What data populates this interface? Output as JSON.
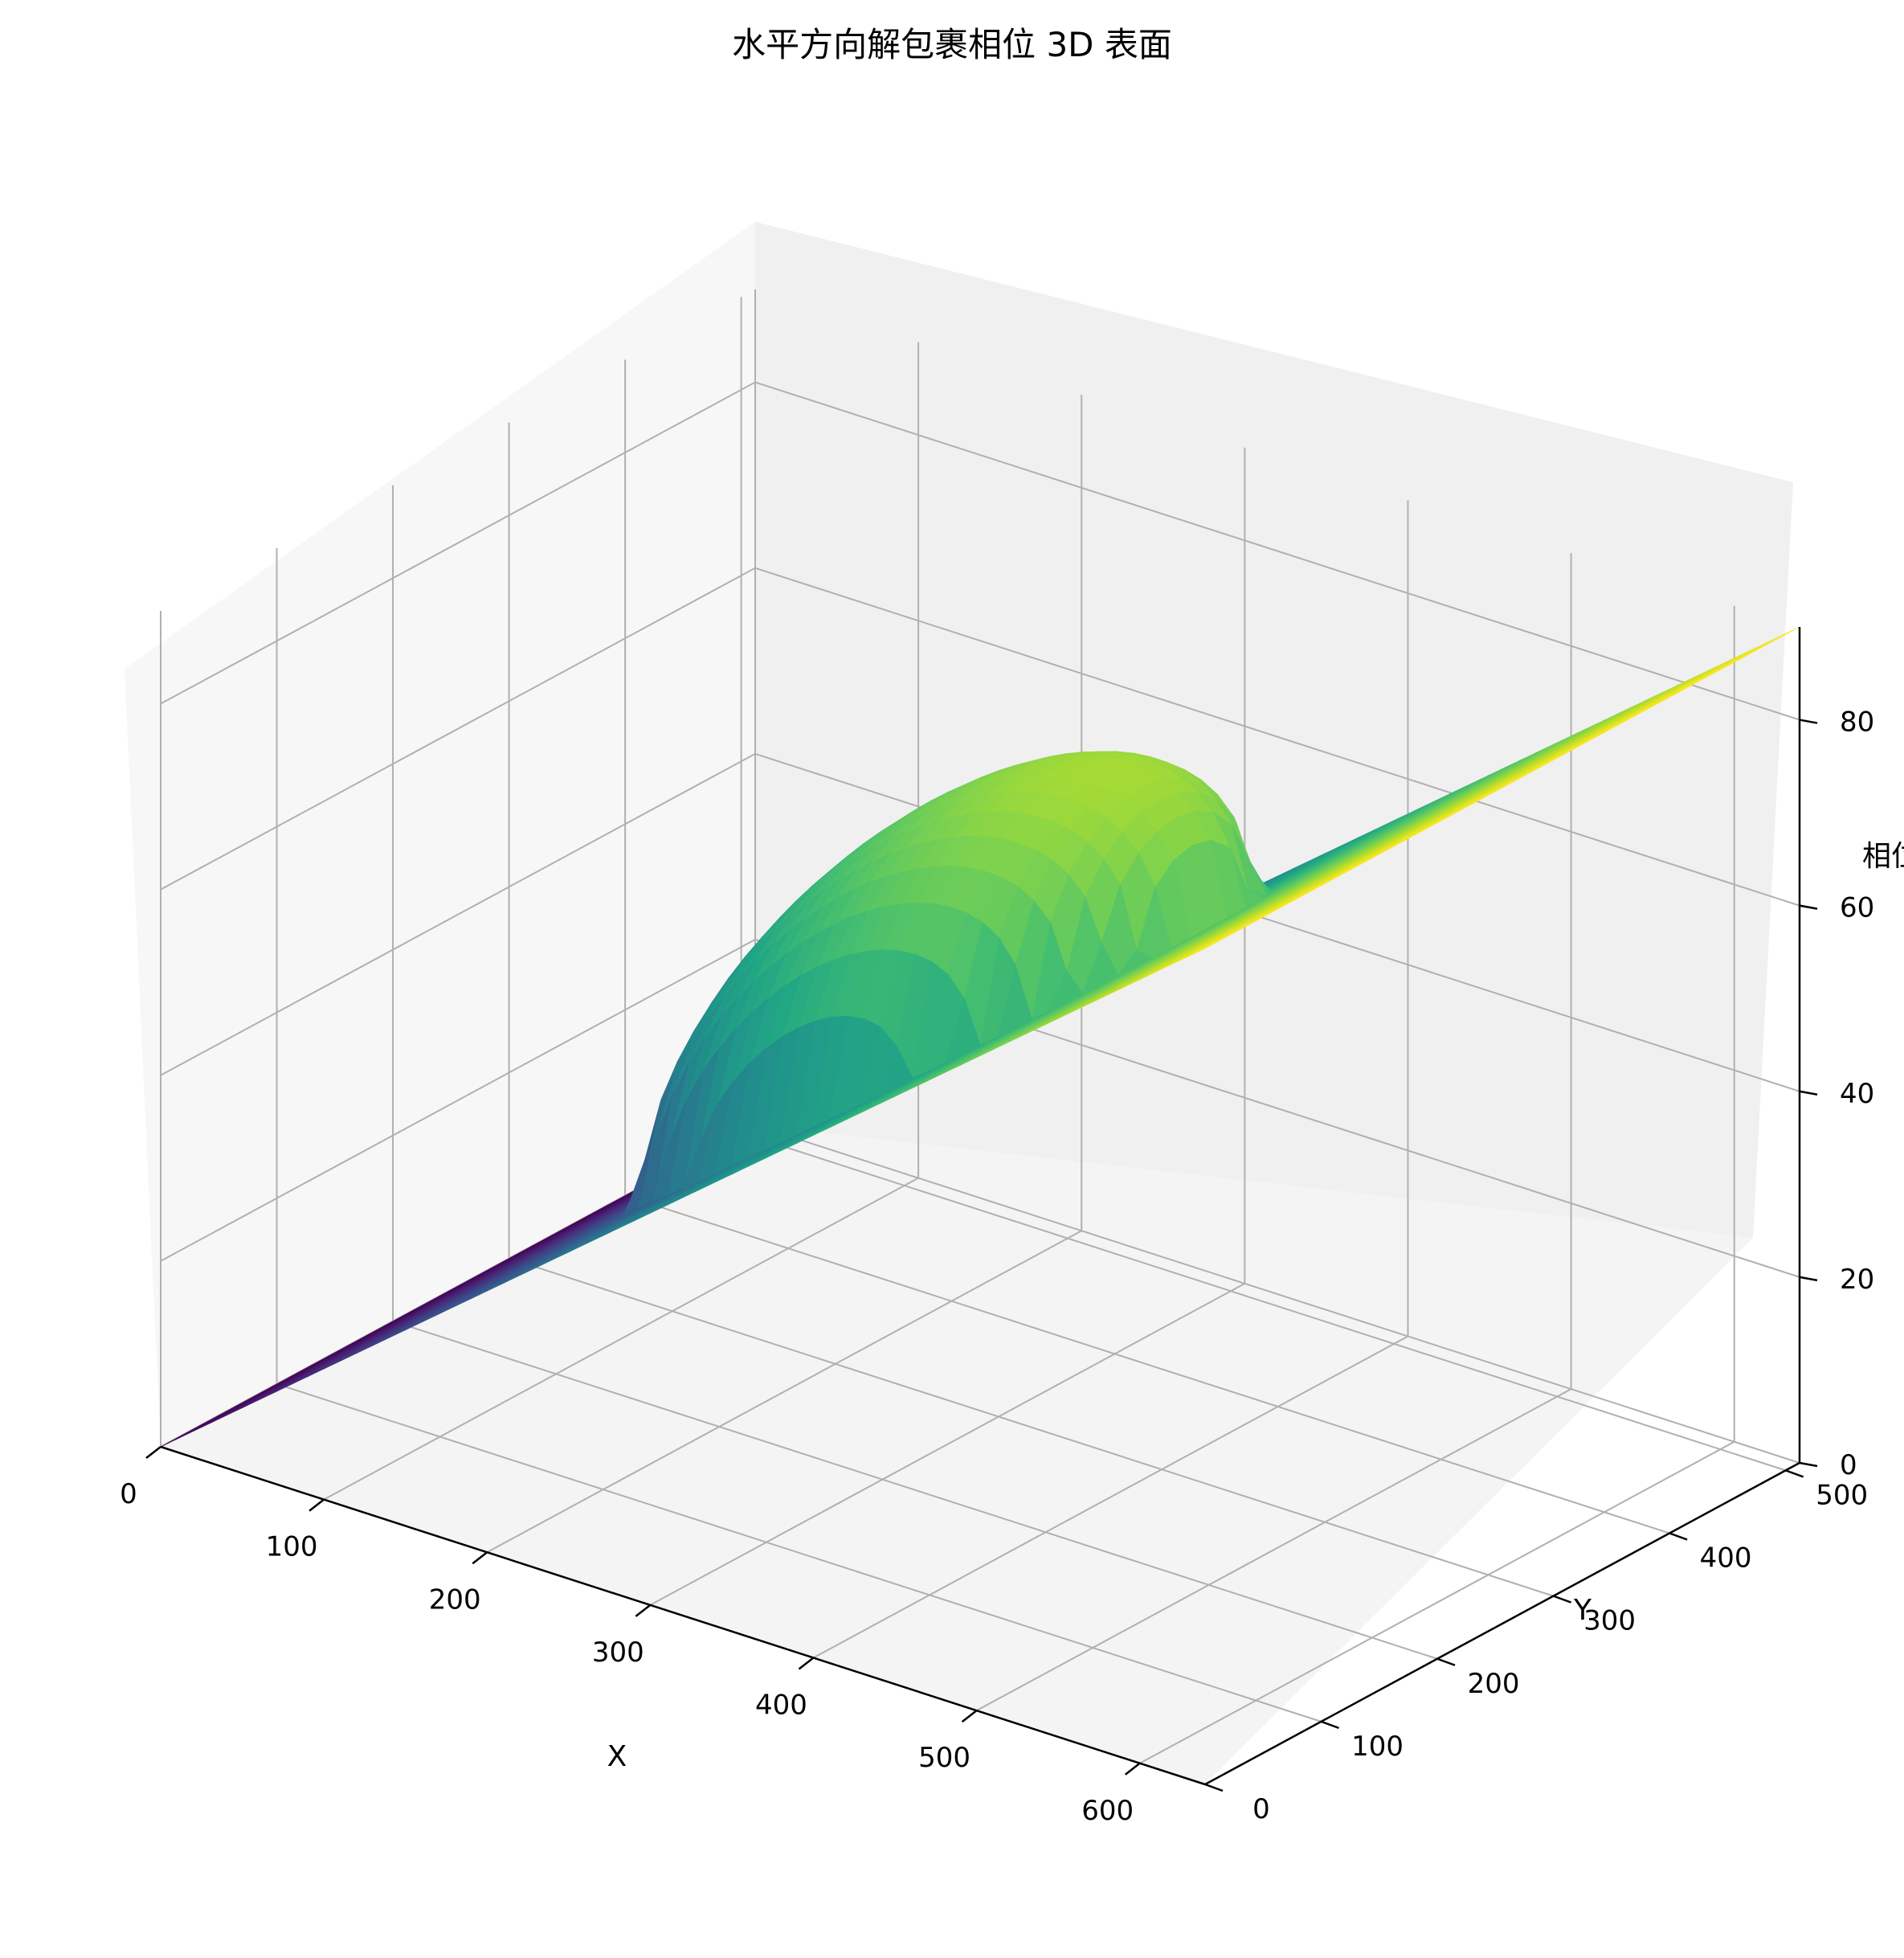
{
  "chart_data": {
    "type": "surface3d",
    "title": "水平方向解包裹相位 3D 表面",
    "xlabel": "X",
    "ylabel": "Y",
    "zlabel": "相位",
    "xlim": [
      0,
      640
    ],
    "ylim": [
      0,
      512
    ],
    "zlim": [
      0,
      90
    ],
    "xticks": [
      "0",
      "100",
      "200",
      "300",
      "400",
      "500",
      "600"
    ],
    "yticks": [
      "0",
      "100",
      "200",
      "300",
      "400",
      "500"
    ],
    "zticks": [
      "0",
      "20",
      "40",
      "60",
      "80"
    ],
    "colormap": "viridis",
    "grid": true,
    "surface": {
      "description_values": {
        "z_at_x0": 0,
        "z_at_x640": 90,
        "bump_center_x": 300,
        "bump_center_y": 256,
        "bump_peak_extra": 28,
        "bump_radius_x": 160,
        "bump_radius_y": 140
      }
    }
  }
}
